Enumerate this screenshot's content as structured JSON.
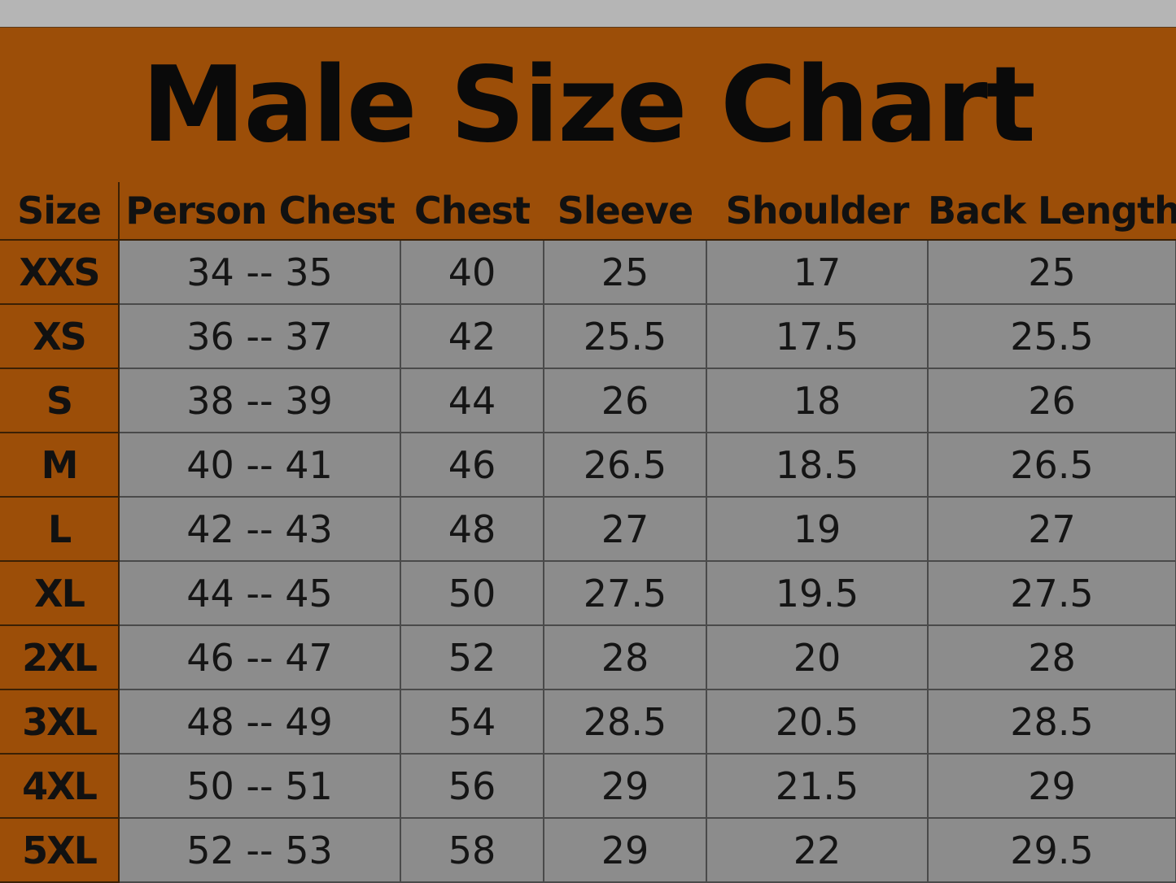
{
  "title": "Male Size Chart",
  "colors": {
    "header_bg": "#9c4e08",
    "cell_bg": "#8c8c8c",
    "top_strip": "#b5b5b5"
  },
  "chart_data": {
    "type": "table",
    "title": "Male Size Chart",
    "columns": [
      "Size",
      "Person Chest",
      "Chest",
      "Sleeve",
      "Shoulder",
      "Back Length"
    ],
    "rows": [
      [
        "XXS",
        "34 -- 35",
        "40",
        "25",
        "17",
        "25"
      ],
      [
        "XS",
        "36 -- 37",
        "42",
        "25.5",
        "17.5",
        "25.5"
      ],
      [
        "S",
        "38 -- 39",
        "44",
        "26",
        "18",
        "26"
      ],
      [
        "M",
        "40 -- 41",
        "46",
        "26.5",
        "18.5",
        "26.5"
      ],
      [
        "L",
        "42 -- 43",
        "48",
        "27",
        "19",
        "27"
      ],
      [
        "XL",
        "44 -- 45",
        "50",
        "27.5",
        "19.5",
        "27.5"
      ],
      [
        "2XL",
        "46 -- 47",
        "52",
        "28",
        "20",
        "28"
      ],
      [
        "3XL",
        "48 -- 49",
        "54",
        "28.5",
        "20.5",
        "28.5"
      ],
      [
        "4XL",
        "50 -- 51",
        "56",
        "29",
        "21.5",
        "29"
      ],
      [
        "5XL",
        "52 -- 53",
        "58",
        "29",
        "22",
        "29.5"
      ]
    ]
  }
}
